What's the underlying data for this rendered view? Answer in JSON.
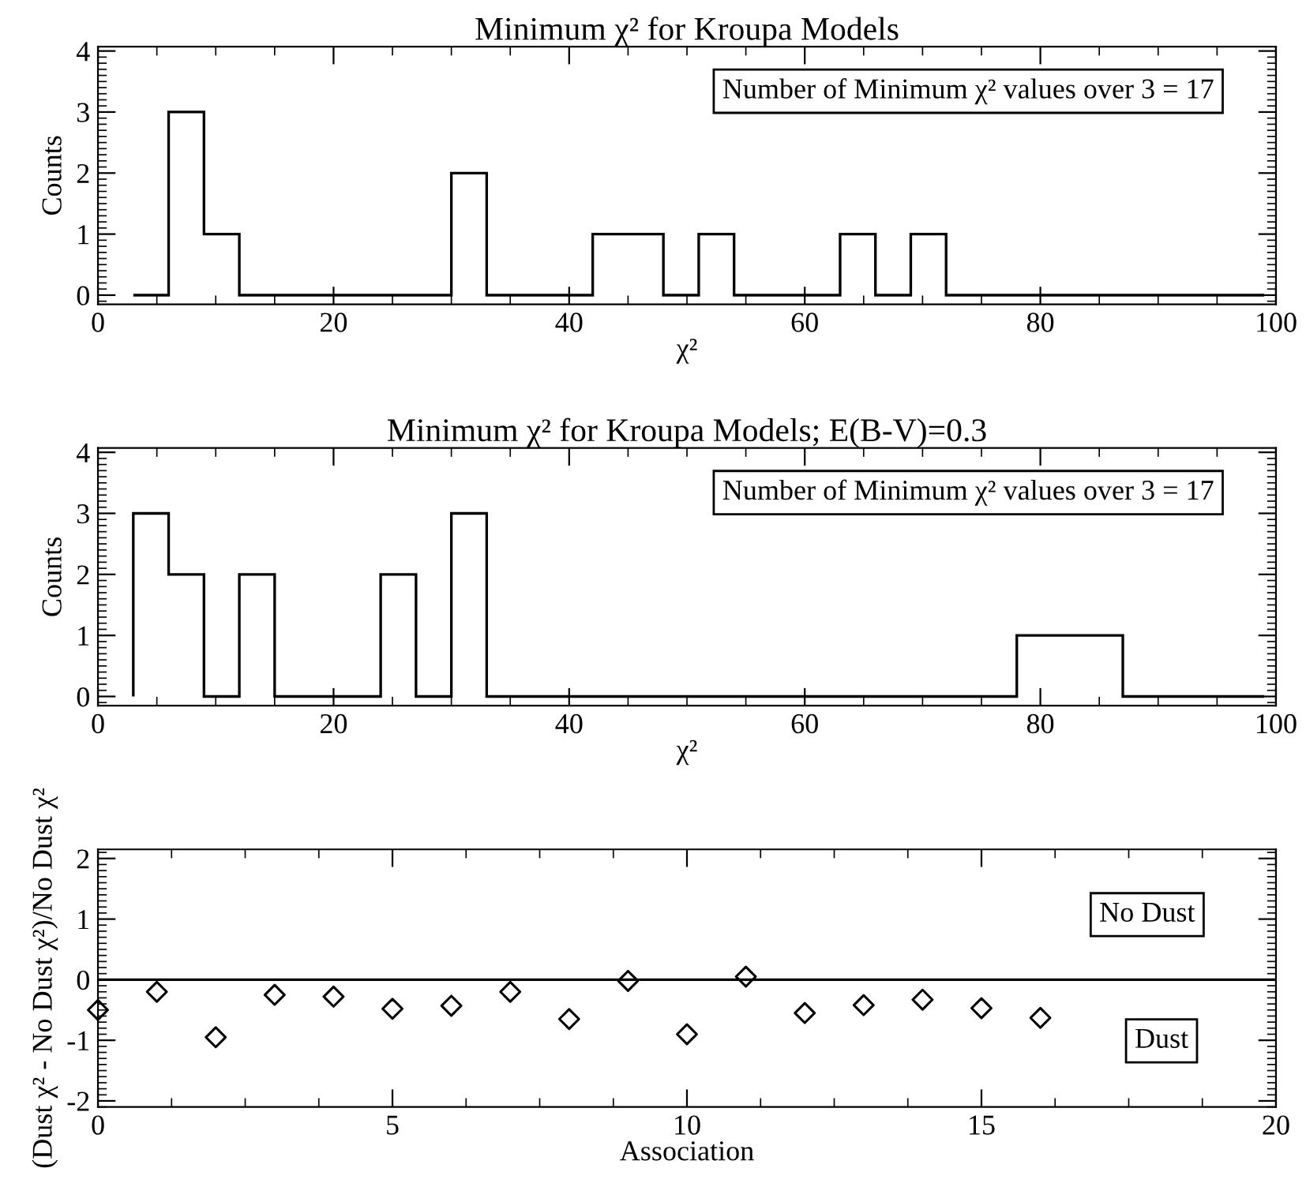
{
  "chart_data": [
    {
      "type": "histogram",
      "title": "Minimum χ² for Kroupa Models",
      "xlabel": "χ²",
      "ylabel": "Counts",
      "bins": [
        3,
        6,
        9,
        12,
        15,
        18,
        21,
        24,
        27,
        30,
        33,
        36,
        39,
        42,
        45,
        48,
        51,
        54,
        57,
        60,
        63,
        66,
        69,
        72,
        75,
        78,
        81,
        84,
        87,
        90,
        93,
        96,
        99
      ],
      "values": [
        0,
        3,
        1,
        0,
        0,
        0,
        0,
        0,
        0,
        2,
        0,
        0,
        0,
        1,
        1,
        0,
        1,
        0,
        0,
        0,
        1,
        0,
        1,
        0,
        0,
        0,
        0,
        0,
        0,
        0,
        0,
        0
      ],
      "color": "#000000",
      "xlim": [
        0,
        100
      ],
      "xticks": [
        0,
        20,
        40,
        60,
        80,
        100
      ],
      "ylim": [
        -0.15,
        4.07
      ],
      "yticks": [
        0,
        1,
        2,
        3,
        4
      ],
      "annotations": [
        "Number of Minimum χ² values over 3 = 17"
      ],
      "grid": false,
      "legend": false
    },
    {
      "type": "histogram",
      "title": "Minimum χ² for Kroupa Models; E(B-V)=0.3",
      "xlabel": "χ²",
      "ylabel": "Counts",
      "bins": [
        3,
        6,
        9,
        12,
        15,
        18,
        21,
        24,
        27,
        30,
        33,
        36,
        39,
        42,
        45,
        48,
        51,
        54,
        57,
        60,
        63,
        66,
        69,
        72,
        75,
        78,
        81,
        84,
        87,
        90,
        93,
        96,
        99
      ],
      "values": [
        3,
        2,
        0,
        2,
        0,
        0,
        0,
        2,
        0,
        3,
        0,
        0,
        0,
        0,
        0,
        0,
        0,
        0,
        0,
        0,
        0,
        0,
        0,
        0,
        0,
        1,
        1,
        1,
        0,
        0,
        0,
        0
      ],
      "color": "#000000",
      "xlim": [
        0,
        100
      ],
      "xticks": [
        0,
        20,
        40,
        60,
        80,
        100
      ],
      "ylim": [
        -0.15,
        4.07
      ],
      "yticks": [
        0,
        1,
        2,
        3,
        4
      ],
      "annotations": [
        "Number of Minimum χ² values over 3 = 17"
      ],
      "grid": false,
      "legend": false
    },
    {
      "type": "scatter",
      "xlabel": "Association",
      "ylabel": "(Dust χ² - No Dust χ²)/No Dust χ²",
      "x": [
        0,
        1,
        2,
        3,
        4,
        5,
        6,
        7,
        8,
        9,
        10,
        11,
        12,
        13,
        14,
        15,
        16
      ],
      "values": [
        -0.5,
        -0.2,
        -0.95,
        -0.25,
        -0.28,
        -0.48,
        -0.43,
        -0.2,
        -0.65,
        -0.02,
        -0.9,
        0.05,
        -0.55,
        -0.42,
        -0.33,
        -0.47,
        -0.63
      ],
      "color": "#000000",
      "marker": "diamond",
      "xlim": [
        0,
        20
      ],
      "xticks": [
        0,
        5,
        10,
        15,
        20
      ],
      "ylim": [
        -2.1,
        2.15
      ],
      "yticks": [
        -2,
        -1,
        0,
        1,
        2
      ],
      "ref_lines": [
        {
          "axis": "y",
          "value": 0,
          "color": "#000000"
        }
      ],
      "annotations": [
        "No Dust",
        "Dust"
      ],
      "grid": false,
      "legend": false
    }
  ]
}
